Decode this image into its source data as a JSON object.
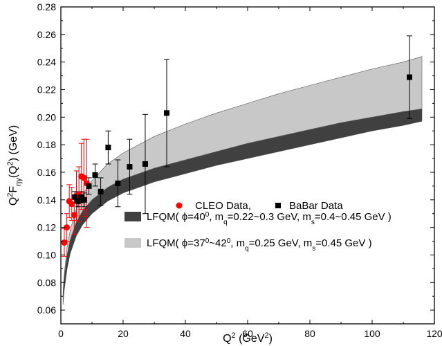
{
  "chart_data": {
    "type": "scatter",
    "xlim": [
      0,
      120
    ],
    "ylim": [
      0.05,
      0.28
    ],
    "x_ticks": [
      0,
      20,
      40,
      60,
      80,
      100,
      120
    ],
    "y_ticks": [
      0.06,
      0.08,
      0.1,
      0.12,
      0.14,
      0.16,
      0.18,
      0.2,
      0.22,
      0.24,
      0.26,
      0.28
    ],
    "x_tick_labels": [
      "0",
      "20",
      "40",
      "60",
      "80",
      "100",
      "120"
    ],
    "y_tick_labels": [
      "0.06",
      "0.08",
      "0.10",
      "0.12",
      "0.14",
      "0.16",
      "0.18",
      "0.20",
      "0.22",
      "0.24",
      "0.26",
      "0.28"
    ],
    "xlabel": {
      "base": "Q",
      "sup": "2",
      "rest": " (GeV",
      "sup2": "2",
      "close": ")"
    },
    "ylabel": {
      "p1": "Q",
      "sup1": "2",
      "p2": "F",
      "sub": "ηγ",
      "p3": "(Q",
      "sup2": "2",
      "p4": ") (GeV)"
    },
    "grid": false,
    "series": [
      {
        "name": "CLEO Data,",
        "marker": "circle",
        "color": "#ff0000",
        "x": [
          1.1,
          1.9,
          2.7,
          3.5,
          4.3,
          5.0,
          5.8,
          6.6,
          7.4,
          8.3
        ],
        "y": [
          0.109,
          0.12,
          0.139,
          0.137,
          0.129,
          0.143,
          0.144,
          0.157,
          0.156,
          0.152
        ],
        "err": [
          0.01,
          0.01,
          0.012,
          0.012,
          0.014,
          0.018,
          0.02,
          0.024,
          0.028,
          0.032
        ]
      },
      {
        "name": "BaBar Data",
        "marker": "square",
        "color": "#000000",
        "x": [
          4.5,
          5.5,
          6.5,
          7.5,
          9.0,
          11.0,
          12.8,
          15.2,
          18.3,
          22.1,
          27.1,
          34.0,
          112.0
        ],
        "y": [
          0.142,
          0.139,
          0.142,
          0.14,
          0.15,
          0.158,
          0.146,
          0.178,
          0.152,
          0.164,
          0.166,
          0.203,
          0.229
        ],
        "err": [
          0.004,
          0.004,
          0.004,
          0.005,
          0.006,
          0.008,
          0.01,
          0.012,
          0.017,
          0.02,
          0.036,
          0.039,
          0.03
        ]
      }
    ],
    "bands": [
      {
        "name_parts": [
          {
            "t": "LFQM( ϕ=40"
          },
          {
            "t": "0",
            "s": "sup"
          },
          {
            "t": ", m"
          },
          {
            "t": "q",
            "s": "sub"
          },
          {
            "t": "=0.22~0.3 GeV, m"
          },
          {
            "t": "s",
            "s": "sub"
          },
          {
            "t": "=0.4~0.45 GeV )"
          }
        ],
        "color": "#404040",
        "x": [
          0.7,
          1,
          2,
          3,
          5,
          7,
          10,
          15,
          20,
          30,
          40,
          50,
          60,
          70,
          80,
          90,
          100,
          110,
          116
        ],
        "lower": [
          0.064,
          0.073,
          0.09,
          0.101,
          0.114,
          0.122,
          0.13,
          0.139,
          0.145,
          0.153,
          0.159,
          0.165,
          0.17,
          0.175,
          0.18,
          0.185,
          0.19,
          0.194,
          0.197
        ],
        "upper": [
          0.072,
          0.082,
          0.1,
          0.111,
          0.124,
          0.132,
          0.14,
          0.149,
          0.155,
          0.163,
          0.169,
          0.175,
          0.181,
          0.186,
          0.191,
          0.196,
          0.2,
          0.204,
          0.206
        ]
      },
      {
        "name_parts": [
          {
            "t": "LFQM( ϕ=37"
          },
          {
            "t": "0",
            "s": "sup"
          },
          {
            "t": "~42"
          },
          {
            "t": "0",
            "s": "sup"
          },
          {
            "t": ", m"
          },
          {
            "t": "q",
            "s": "sub"
          },
          {
            "t": "=0.25 GeV, m"
          },
          {
            "t": "s",
            "s": "sub"
          },
          {
            "t": "=0.45 GeV )"
          }
        ],
        "color": "#c8c8c8",
        "x": [
          0.7,
          1,
          2,
          3,
          5,
          7,
          10,
          15,
          20,
          30,
          40,
          50,
          60,
          70,
          80,
          90,
          100,
          110,
          116
        ],
        "lower": [
          0.072,
          0.082,
          0.1,
          0.111,
          0.124,
          0.132,
          0.14,
          0.149,
          0.155,
          0.163,
          0.169,
          0.175,
          0.181,
          0.186,
          0.191,
          0.196,
          0.2,
          0.204,
          0.206
        ],
        "upper": [
          0.072,
          0.084,
          0.106,
          0.118,
          0.134,
          0.144,
          0.154,
          0.166,
          0.174,
          0.186,
          0.195,
          0.203,
          0.21,
          0.217,
          0.223,
          0.229,
          0.235,
          0.24,
          0.244
        ]
      }
    ],
    "legend_placement": "center-right"
  }
}
